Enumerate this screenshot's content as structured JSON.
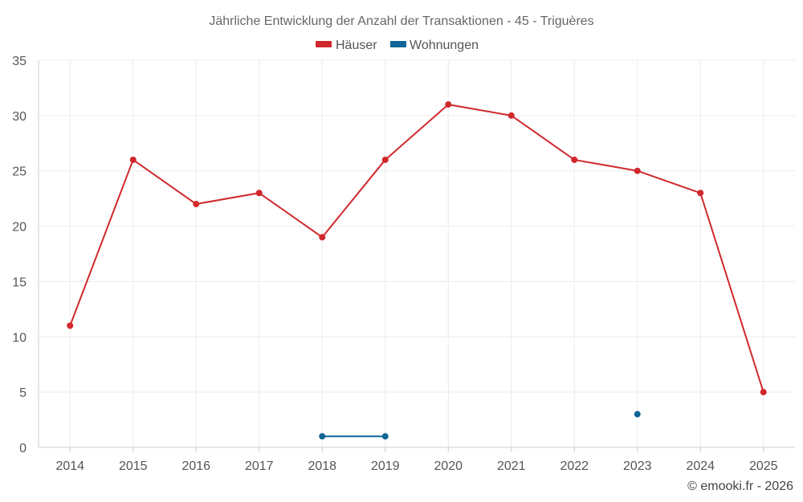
{
  "chart_data": {
    "type": "line",
    "title": "Jährliche Entwicklung der Anzahl der Transaktionen - 45 - Triguères",
    "xlabel": "",
    "ylabel": "",
    "categories": [
      "2014",
      "2015",
      "2016",
      "2017",
      "2018",
      "2019",
      "2020",
      "2021",
      "2022",
      "2023",
      "2024",
      "2025"
    ],
    "ylim": [
      0,
      35
    ],
    "yticks": [
      0,
      5,
      10,
      15,
      20,
      25,
      30,
      35
    ],
    "grid": true,
    "legend_position": "top-center",
    "series": [
      {
        "name": "Häuser",
        "color": "#d0282c",
        "values": [
          11,
          26,
          22,
          23,
          19,
          26,
          31,
          30,
          26,
          25,
          23,
          5
        ]
      },
      {
        "name": "Wohnungen",
        "color": "#0f6597",
        "values": [
          null,
          null,
          null,
          null,
          1,
          1,
          null,
          null,
          null,
          3,
          null,
          null
        ]
      }
    ]
  },
  "credit": "© emooki.fr - 2026"
}
